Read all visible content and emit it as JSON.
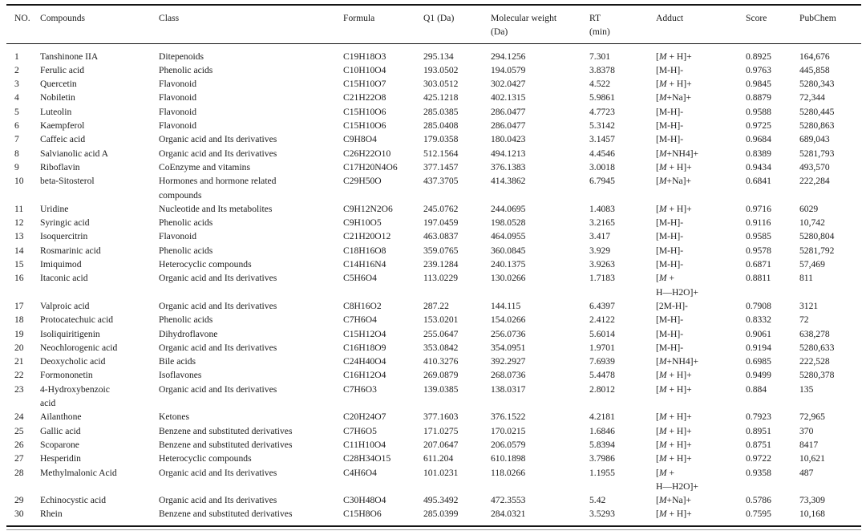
{
  "page": {
    "background_color": "#ffffff",
    "text_color": "#1b1b1b",
    "rule_color": "#151515"
  },
  "table": {
    "columns": [
      {
        "label": "NO."
      },
      {
        "label": "Compounds"
      },
      {
        "label": "Class"
      },
      {
        "label": "Formula"
      },
      {
        "label": "Q1 (Da)"
      },
      {
        "label": "Molecular weight",
        "label2": "(Da)"
      },
      {
        "label": "RT",
        "label2": "(min)"
      },
      {
        "label": "Adduct"
      },
      {
        "label": "Score"
      },
      {
        "label": "PubChem"
      }
    ],
    "rows": [
      [
        "1",
        "Tanshinone IIA",
        "Ditepenoids",
        "C19H18O3",
        "295.134",
        "294.1256",
        "7.301",
        "[M + H]+",
        "0.8925",
        "164,676"
      ],
      [
        "2",
        "Ferulic acid",
        "Phenolic acids",
        "C10H10O4",
        "193.0502",
        "194.0579",
        "3.8378",
        "[M-H]-",
        "0.9763",
        "445,858"
      ],
      [
        "3",
        "Quercetin",
        "Flavonoid",
        "C15H10O7",
        "303.0512",
        "302.0427",
        "4.522",
        "[M + H]+",
        "0.9845",
        "5280,343"
      ],
      [
        "4",
        "Nobiletin",
        "Flavonoid",
        "C21H22O8",
        "425.1218",
        "402.1315",
        "5.9861",
        "[M+Na]+",
        "0.8879",
        "72,344"
      ],
      [
        "5",
        "Luteolin",
        "Flavonoid",
        "C15H10O6",
        "285.0385",
        "286.0477",
        "4.7723",
        "[M-H]-",
        "0.9588",
        "5280,445"
      ],
      [
        "6",
        "Kaempferol",
        "Flavonoid",
        "C15H10O6",
        "285.0408",
        "286.0477",
        "5.3142",
        "[M-H]-",
        "0.9725",
        "5280,863"
      ],
      [
        "7",
        "Caffeic acid",
        "Organic acid and Its derivatives",
        "C9H8O4",
        "179.0358",
        "180.0423",
        "3.1457",
        "[M-H]-",
        "0.9684",
        "689,043"
      ],
      [
        "8",
        "Salvianolic acid A",
        "Organic acid and Its derivatives",
        "C26H22O10",
        "512.1564",
        "494.1213",
        "4.4546",
        "[M+NH4]+",
        "0.8389",
        "5281,793"
      ],
      [
        "9",
        "Riboflavin",
        "CoEnzyme and vitamins",
        "C17H20N4O6",
        "377.1457",
        "376.1383",
        "3.0018",
        "[M + H]+",
        "0.9434",
        "493,570"
      ],
      [
        "10",
        "beta-Sitosterol",
        "Hormones and hormone related\ncompounds",
        "C29H50O",
        "437.3705",
        "414.3862",
        "6.7945",
        "[M+Na]+",
        "0.6841",
        "222,284"
      ],
      [
        "11",
        "Uridine",
        "Nucleotide and Its metabolites",
        "C9H12N2O6",
        "245.0762",
        "244.0695",
        "1.4083",
        "[M + H]+",
        "0.9716",
        "6029"
      ],
      [
        "12",
        "Syringic acid",
        "Phenolic acids",
        "C9H10O5",
        "197.0459",
        "198.0528",
        "3.2165",
        "[M-H]-",
        "0.9116",
        "10,742"
      ],
      [
        "13",
        "Isoquercitrin",
        "Flavonoid",
        "C21H20O12",
        "463.0837",
        "464.0955",
        "3.417",
        "[M-H]-",
        "0.9585",
        "5280,804"
      ],
      [
        "14",
        "Rosmarinic acid",
        "Phenolic acids",
        "C18H16O8",
        "359.0765",
        "360.0845",
        "3.929",
        "[M-H]-",
        "0.9578",
        "5281,792"
      ],
      [
        "15",
        "Imiquimod",
        "Heterocyclic compounds",
        "C14H16N4",
        "239.1284",
        "240.1375",
        "3.9263",
        "[M-H]-",
        "0.6871",
        "57,469"
      ],
      [
        "16",
        "Itaconic acid",
        "Organic acid and Its derivatives",
        "C5H6O4",
        "113.0229",
        "130.0266",
        "1.7183",
        "[M +\nH—H2O]+",
        "0.8811",
        "811"
      ],
      [
        "17",
        "Valproic acid",
        "Organic acid and Its derivatives",
        "C8H16O2",
        "287.22",
        "144.115",
        "6.4397",
        "[2M-H]-",
        "0.7908",
        "3121"
      ],
      [
        "18",
        "Protocatechuic acid",
        "Phenolic acids",
        "C7H6O4",
        "153.0201",
        "154.0266",
        "2.4122",
        "[M-H]-",
        "0.8332",
        "72"
      ],
      [
        "19",
        "Isoliquiritigenin",
        "Dihydroflavone",
        "C15H12O4",
        "255.0647",
        "256.0736",
        "5.6014",
        "[M-H]-",
        "0.9061",
        "638,278"
      ],
      [
        "20",
        "Neochlorogenic acid",
        "Organic acid and Its derivatives",
        "C16H18O9",
        "353.0842",
        "354.0951",
        "1.9701",
        "[M-H]-",
        "0.9194",
        "5280,633"
      ],
      [
        "21",
        "Deoxycholic acid",
        "Bile acids",
        "C24H40O4",
        "410.3276",
        "392.2927",
        "7.6939",
        "[M+NH4]+",
        "0.6985",
        "222,528"
      ],
      [
        "22",
        "Formononetin",
        "Isoflavones",
        "C16H12O4",
        "269.0879",
        "268.0736",
        "5.4478",
        "[M + H]+",
        "0.9499",
        "5280,378"
      ],
      [
        "23",
        "4-Hydroxybenzoic\nacid",
        "Organic acid and Its derivatives",
        "C7H6O3",
        "139.0385",
        "138.0317",
        "2.8012",
        "[M + H]+",
        "0.884",
        "135"
      ],
      [
        "24",
        "Ailanthone",
        "Ketones",
        "C20H24O7",
        "377.1603",
        "376.1522",
        "4.2181",
        "[M + H]+",
        "0.7923",
        "72,965"
      ],
      [
        "25",
        "Gallic acid",
        "Benzene and substituted derivatives",
        "C7H6O5",
        "171.0275",
        "170.0215",
        "1.6846",
        "[M + H]+",
        "0.8951",
        "370"
      ],
      [
        "26",
        "Scoparone",
        "Benzene and substituted derivatives",
        "C11H10O4",
        "207.0647",
        "206.0579",
        "5.8394",
        "[M + H]+",
        "0.8751",
        "8417"
      ],
      [
        "27",
        "Hesperidin",
        "Heterocyclic compounds",
        "C28H34O15",
        "611.204",
        "610.1898",
        "3.7986",
        "[M + H]+",
        "0.9722",
        "10,621"
      ],
      [
        "28",
        "Methylmalonic Acid",
        "Organic acid and Its derivatives",
        "C4H6O4",
        "101.0231",
        "118.0266",
        "1.1955",
        "[M +\nH—H2O]+",
        "0.9358",
        "487"
      ],
      [
        "29",
        "Echinocystic acid",
        "Organic acid and Its derivatives",
        "C30H48O4",
        "495.3492",
        "472.3553",
        "5.42",
        "[M+Na]+",
        "0.5786",
        "73,309"
      ],
      [
        "30",
        "Rhein",
        "Benzene and substituted derivatives",
        "C15H8O6",
        "285.0399",
        "284.0321",
        "3.5293",
        "[M + H]+",
        "0.7595",
        "10,168"
      ]
    ]
  }
}
